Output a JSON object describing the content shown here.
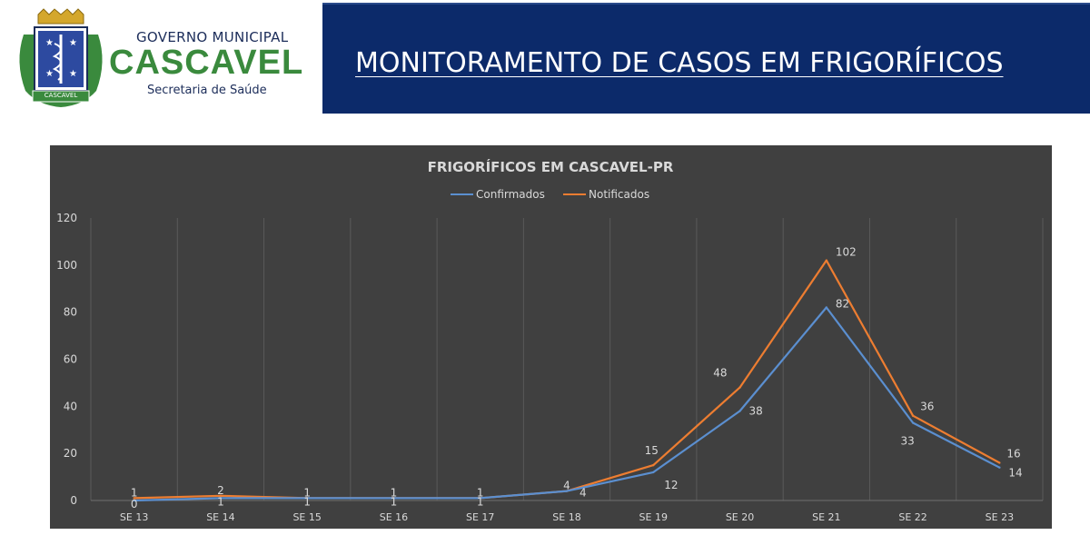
{
  "header": {
    "logo": {
      "line1": "GOVERNO MUNICIPAL",
      "name": "CASCAVEL",
      "line3": "Secretaria de Saúde",
      "ribbon": "CASCAVEL"
    },
    "banner_title": "MONITORAMENTO DE CASOS EM FRIGORÍFICOS"
  },
  "colors": {
    "banner": "#0c2a6a",
    "chart_bg": "#404040",
    "confirmados": "#5b8fd0",
    "notificados": "#ed7d31"
  },
  "chart_data": {
    "type": "line",
    "title": "FRIGORÍFICOS EM CASCAVEL-PR",
    "categories": [
      "SE 13",
      "SE 14",
      "SE 15",
      "SE 16",
      "SE 17",
      "SE 18",
      "SE 19",
      "SE 20",
      "SE 21",
      "SE 22",
      "SE 23"
    ],
    "series": [
      {
        "name": "Confirmados",
        "values": [
          0,
          1,
          1,
          1,
          1,
          4,
          12,
          38,
          82,
          33,
          14
        ]
      },
      {
        "name": "Notificados",
        "values": [
          1,
          2,
          1,
          1,
          1,
          4,
          15,
          48,
          102,
          36,
          16
        ]
      }
    ],
    "ylim": [
      0,
      120
    ],
    "yticks": [
      0,
      20,
      40,
      60,
      80,
      100,
      120
    ],
    "legend": "top",
    "grid": "vertical"
  }
}
